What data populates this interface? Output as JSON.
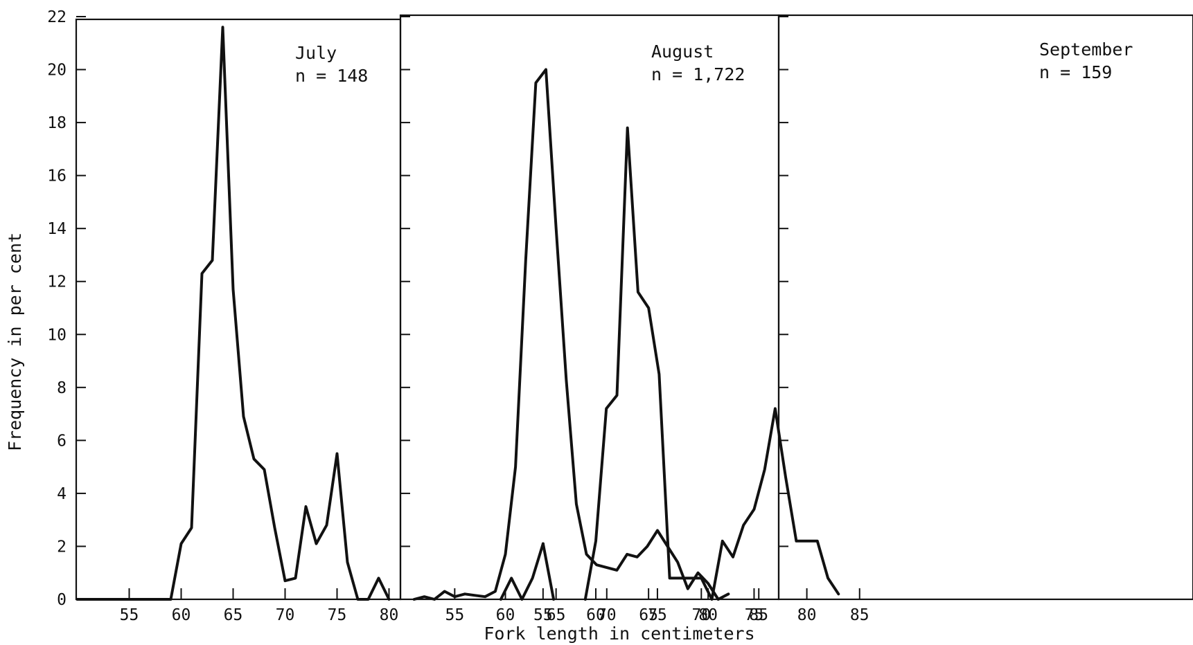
{
  "chart_data": {
    "type": "line",
    "ylabel": "Frequency in per cent",
    "xlabel": "Fork length in centimeters",
    "ylim": [
      0,
      22
    ],
    "yticks": [
      0,
      2,
      4,
      6,
      8,
      10,
      12,
      14,
      16,
      18,
      20,
      22
    ],
    "yticklabels": [
      "0",
      "2",
      "4",
      "6",
      "8",
      "10",
      "12",
      "14",
      "16",
      "18",
      "20",
      "22"
    ],
    "grid": false,
    "panels": [
      {
        "name": "July",
        "label_title": "July",
        "label_n": "n = 148",
        "xticks": [
          55,
          60,
          65,
          70,
          75,
          80
        ],
        "xticklabels": [
          "55",
          "60",
          "65",
          "70",
          "75",
          "80"
        ],
        "x": [
          50,
          51,
          52,
          53,
          54,
          55,
          56,
          57,
          58,
          59,
          60,
          61,
          62,
          63,
          64,
          65,
          66,
          67,
          68,
          69,
          70,
          71,
          72,
          73,
          74,
          75,
          76,
          77,
          78,
          79,
          80
        ],
        "y": [
          0,
          0,
          0,
          0,
          0,
          0,
          0,
          0,
          0,
          0,
          2.1,
          2.7,
          12.3,
          12.8,
          21.6,
          11.7,
          6.9,
          5.3,
          4.9,
          2.7,
          0.7,
          0.8,
          3.5,
          2.1,
          2.8,
          5.5,
          1.4,
          0,
          0,
          0.8,
          0
        ]
      },
      {
        "name": "August",
        "label_title": "August",
        "label_n": "n = 1,722",
        "xticks": [
          55,
          60,
          65,
          70,
          75,
          80,
          85
        ],
        "xticklabels": [
          "55",
          "60",
          "65",
          "70",
          "75",
          "80",
          "85"
        ],
        "x": [
          51,
          52,
          53,
          54,
          55,
          56,
          57,
          58,
          59,
          60,
          61,
          62,
          63,
          64,
          65,
          66,
          67,
          68,
          69,
          70,
          71,
          72,
          73,
          74,
          75,
          76,
          77,
          78,
          79,
          80,
          81,
          82
        ],
        "y": [
          0,
          0.1,
          0,
          0.3,
          0.1,
          0.2,
          0.15,
          0.1,
          0.3,
          1.7,
          5.0,
          12.8,
          19.5,
          20.0,
          14.0,
          8.3,
          3.6,
          1.7,
          1.3,
          1.2,
          1.1,
          1.7,
          1.6,
          2.0,
          2.6,
          2.0,
          1.4,
          0.4,
          1.0,
          0.6,
          0,
          0.2
        ]
      },
      {
        "name": "September",
        "label_title": "September",
        "label_n": "n = 159",
        "xticks": [
          55,
          60,
          65,
          70,
          75,
          80,
          85
        ],
        "xticklabels": [
          "55",
          "60",
          "65",
          "70",
          "75",
          "80",
          "85"
        ],
        "segments": [
          {
            "x": [
              51,
              52,
              53,
              54,
              55
            ],
            "y": [
              0,
              0.8,
              0,
              0.8,
              2.1
            ]
          },
          {
            "x": [
              55,
              56
            ],
            "y": [
              2.1,
              0
            ]
          },
          {
            "x": [
              59,
              60,
              61,
              62,
              63,
              64,
              65,
              66,
              67,
              68,
              69,
              70,
              71,
              72,
              73,
              74,
              75,
              76,
              77,
              78,
              79,
              80,
              81,
              82,
              83
            ],
            "y": [
              0,
              2.2,
              7.2,
              7.7,
              17.8,
              11.6,
              11.0,
              8.5,
              0.8,
              0.8,
              0.8,
              0.8,
              0,
              2.2,
              1.6,
              2.8,
              3.4,
              4.9,
              7.2,
              4.6,
              2.2,
              2.2,
              2.2,
              0.8,
              0.2
            ]
          }
        ]
      }
    ]
  }
}
